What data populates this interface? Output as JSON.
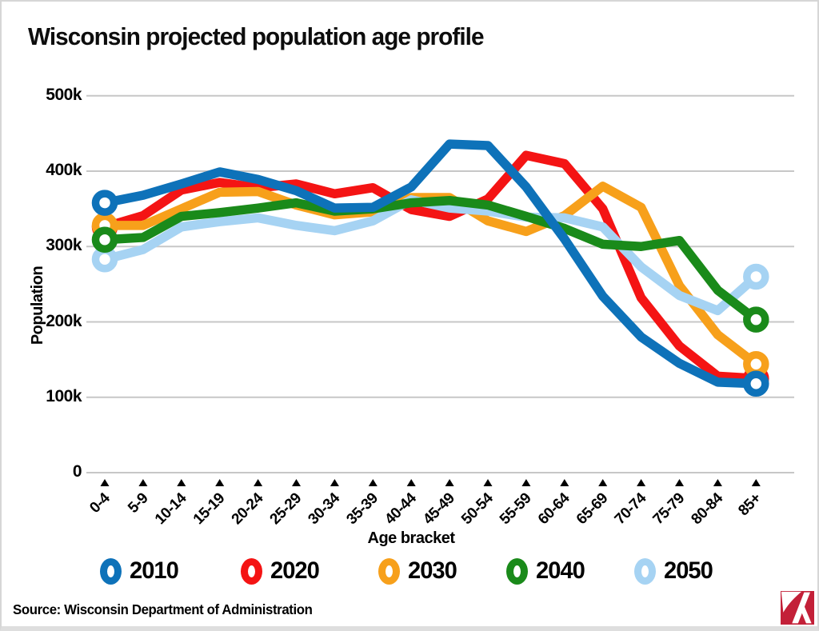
{
  "page": {
    "title": "Wisconsin projected population age profile",
    "source_line": "Source: Wisconsin Department of Administration",
    "logo_color": "#c32038",
    "text_color": "#000000",
    "grid_color": "#c7c7c7"
  },
  "chart_data": {
    "type": "line",
    "title": "Wisconsin projected population age profile",
    "xlabel": "Age bracket",
    "ylabel": "Population",
    "units_note": "values in thousands of people",
    "ylim_thousands": [
      0,
      500
    ],
    "ytick_labels": [
      "0",
      "100k",
      "200k",
      "300k",
      "400k",
      "500k"
    ],
    "grid": true,
    "legend_position": "bottom",
    "marker_style": "ring markers on first and last point of each series",
    "categories": [
      "0-4",
      "5-9",
      "10-14",
      "15-19",
      "20-24",
      "25-29",
      "30-34",
      "35-39",
      "40-44",
      "45-49",
      "50-54",
      "55-59",
      "60-64",
      "65-69",
      "70-74",
      "75-79",
      "80-84",
      "85+"
    ],
    "series": [
      {
        "name": "2010",
        "color": "#0e72b9",
        "values_k": [
          358,
          368,
          383,
          399,
          389,
          374,
          351,
          352,
          379,
          436,
          434,
          379,
          310,
          234,
          180,
          145,
          120,
          118
        ]
      },
      {
        "name": "2020",
        "color": "#f41414",
        "values_k": [
          326,
          341,
          375,
          385,
          378,
          383,
          370,
          378,
          349,
          340,
          363,
          421,
          410,
          350,
          232,
          168,
          128,
          125
        ]
      },
      {
        "name": "2030",
        "color": "#f7a01b",
        "values_k": [
          328,
          328,
          350,
          372,
          373,
          355,
          342,
          346,
          365,
          365,
          334,
          320,
          341,
          380,
          352,
          248,
          183,
          144
        ]
      },
      {
        "name": "2040",
        "color": "#1a8a1a",
        "values_k": [
          309,
          312,
          340,
          345,
          351,
          358,
          347,
          350,
          358,
          361,
          355,
          340,
          324,
          303,
          300,
          308,
          242,
          203
        ]
      },
      {
        "name": "2050",
        "color": "#a6d3f3",
        "values_k": [
          283,
          296,
          326,
          333,
          338,
          328,
          321,
          334,
          362,
          351,
          347,
          339,
          338,
          326,
          273,
          235,
          215,
          260
        ]
      }
    ]
  }
}
